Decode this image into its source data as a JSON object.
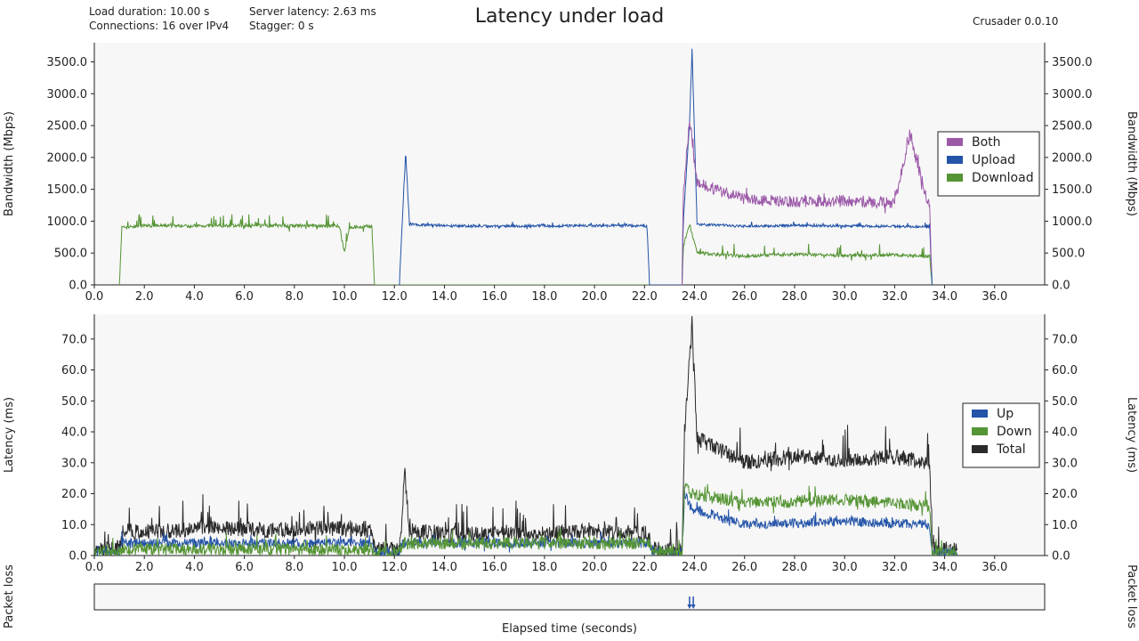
{
  "header": {
    "title": "Latency under load",
    "load_duration": "Load duration: 10.00 s",
    "connections": "Connections: 16 over IPv4",
    "server_latency": "Server latency: 2.63 ms",
    "stagger": "Stagger: 0 s",
    "version": "Crusader 0.0.10"
  },
  "colors": {
    "both": "#9b59a8",
    "upload": "#2454a8",
    "download": "#559434",
    "total": "#2a2a2a",
    "plot_bg": "#f7f7f7"
  },
  "chart_data": [
    {
      "type": "line",
      "ylabel": "Bandwidth (Mbps)",
      "xlim": [
        0,
        38
      ],
      "ylim": [
        0,
        3800
      ],
      "xticks": [
        "0.0",
        "2.0",
        "4.0",
        "6.0",
        "8.0",
        "10.0",
        "12.0",
        "14.0",
        "16.0",
        "18.0",
        "20.0",
        "22.0",
        "24.0",
        "26.0",
        "28.0",
        "30.0",
        "32.0",
        "34.0",
        "36.0"
      ],
      "yticks": [
        "0.0",
        "500.0",
        "1000.0",
        "1500.0",
        "2000.0",
        "2500.0",
        "3000.0",
        "3500.0"
      ],
      "legend": {
        "position": "right",
        "entries": [
          "Both",
          "Upload",
          "Download"
        ]
      },
      "series": [
        {
          "name": "Download",
          "color": "#559434",
          "points": [
            [
              1.0,
              0
            ],
            [
              1.1,
              900
            ],
            [
              2,
              930
            ],
            [
              4,
              925
            ],
            [
              6,
              930
            ],
            [
              8,
              928
            ],
            [
              9.8,
              925
            ],
            [
              10.0,
              500
            ],
            [
              10.2,
              900
            ],
            [
              11.1,
              920
            ],
            [
              11.2,
              0
            ],
            [
              23.5,
              0
            ],
            [
              23.55,
              600
            ],
            [
              23.8,
              950
            ],
            [
              24.1,
              500
            ],
            [
              26,
              450
            ],
            [
              28,
              480
            ],
            [
              30,
              460
            ],
            [
              32,
              470
            ],
            [
              33.4,
              450
            ],
            [
              33.5,
              0
            ]
          ],
          "noise": 25,
          "burst": 180
        },
        {
          "name": "Upload",
          "color": "#2454a8",
          "points": [
            [
              12.2,
              0
            ],
            [
              12.3,
              900
            ],
            [
              12.45,
              2080
            ],
            [
              12.6,
              950
            ],
            [
              14,
              930
            ],
            [
              16,
              920
            ],
            [
              18,
              925
            ],
            [
              20,
              930
            ],
            [
              22.1,
              925
            ],
            [
              22.2,
              0
            ],
            [
              23.5,
              0
            ],
            [
              23.55,
              1000
            ],
            [
              23.8,
              2550
            ],
            [
              23.9,
              3700
            ],
            [
              24.1,
              950
            ],
            [
              26,
              920
            ],
            [
              28,
              930
            ],
            [
              30,
              925
            ],
            [
              32,
              920
            ],
            [
              33.4,
              910
            ],
            [
              33.5,
              0
            ]
          ],
          "noise": 20,
          "burst": 60
        },
        {
          "name": "Both",
          "color": "#9b59a8",
          "points": [
            [
              23.5,
              0
            ],
            [
              23.55,
              1450
            ],
            [
              23.8,
              2600
            ],
            [
              24.1,
              1600
            ],
            [
              26,
              1350
            ],
            [
              28,
              1300
            ],
            [
              30,
              1320
            ],
            [
              32,
              1280
            ],
            [
              32.6,
              2350
            ],
            [
              33.4,
              1200
            ],
            [
              33.5,
              0
            ]
          ],
          "noise": 90,
          "burst": 150
        }
      ]
    },
    {
      "type": "line",
      "ylabel": "Latency (ms)",
      "xlim": [
        0,
        38
      ],
      "ylim": [
        0,
        78
      ],
      "xticks": [
        "0.0",
        "2.0",
        "4.0",
        "6.0",
        "8.0",
        "10.0",
        "12.0",
        "14.0",
        "16.0",
        "18.0",
        "20.0",
        "22.0",
        "24.0",
        "26.0",
        "28.0",
        "30.0",
        "32.0",
        "34.0",
        "36.0"
      ],
      "yticks": [
        "0.0",
        "10.0",
        "20.0",
        "30.0",
        "40.0",
        "50.0",
        "60.0",
        "70.0"
      ],
      "legend": {
        "position": "right",
        "entries": [
          "Up",
          "Down",
          "Total"
        ]
      },
      "series": [
        {
          "name": "Total",
          "color": "#2a2a2a",
          "points": [
            [
              0,
              2
            ],
            [
              1.0,
              2
            ],
            [
              1.1,
              8
            ],
            [
              3,
              8
            ],
            [
              5,
              9
            ],
            [
              7,
              8
            ],
            [
              9,
              9
            ],
            [
              11.1,
              8
            ],
            [
              11.2,
              2
            ],
            [
              12.2,
              2
            ],
            [
              12.3,
              10
            ],
            [
              12.4,
              28
            ],
            [
              12.6,
              8
            ],
            [
              14,
              7
            ],
            [
              16,
              7
            ],
            [
              18,
              7
            ],
            [
              20,
              8
            ],
            [
              22.2,
              7
            ],
            [
              22.3,
              2
            ],
            [
              23.5,
              2
            ],
            [
              23.6,
              40
            ],
            [
              23.8,
              65
            ],
            [
              23.9,
              75
            ],
            [
              24.1,
              38
            ],
            [
              26,
              30
            ],
            [
              28,
              32
            ],
            [
              30,
              31
            ],
            [
              32,
              32
            ],
            [
              33.4,
              30
            ],
            [
              33.5,
              2
            ],
            [
              34.5,
              2
            ]
          ],
          "noise": 2.5,
          "burst": 10
        },
        {
          "name": "Up",
          "color": "#2454a8",
          "points": [
            [
              0,
              1
            ],
            [
              1.0,
              1
            ],
            [
              1.1,
              4
            ],
            [
              11.1,
              4
            ],
            [
              11.2,
              1
            ],
            [
              12.2,
              1
            ],
            [
              12.3,
              4
            ],
            [
              22.2,
              4
            ],
            [
              22.3,
              1
            ],
            [
              23.5,
              1
            ],
            [
              23.6,
              20
            ],
            [
              23.9,
              15
            ],
            [
              26,
              10
            ],
            [
              30,
              11
            ],
            [
              33.4,
              10
            ],
            [
              33.5,
              1
            ],
            [
              34.5,
              1
            ]
          ],
          "noise": 1.5,
          "burst": 3
        },
        {
          "name": "Down",
          "color": "#559434",
          "points": [
            [
              0,
              1
            ],
            [
              1.0,
              1
            ],
            [
              1.1,
              2
            ],
            [
              11.1,
              2
            ],
            [
              11.2,
              1
            ],
            [
              12.2,
              1
            ],
            [
              12.3,
              4
            ],
            [
              22.2,
              4
            ],
            [
              22.3,
              1
            ],
            [
              23.5,
              1
            ],
            [
              23.6,
              22
            ],
            [
              23.9,
              20
            ],
            [
              26,
              17
            ],
            [
              30,
              18
            ],
            [
              33.4,
              16
            ],
            [
              33.5,
              1
            ],
            [
              34.5,
              1
            ]
          ],
          "noise": 2.0,
          "burst": 4
        }
      ]
    },
    {
      "type": "scatter",
      "ylabel": "Packet loss",
      "xlim": [
        0,
        38
      ],
      "xlabel": "Elapsed time (seconds)",
      "events": [
        {
          "x": 23.8,
          "color": "#2454a8"
        },
        {
          "x": 23.95,
          "color": "#2454a8"
        }
      ]
    }
  ]
}
